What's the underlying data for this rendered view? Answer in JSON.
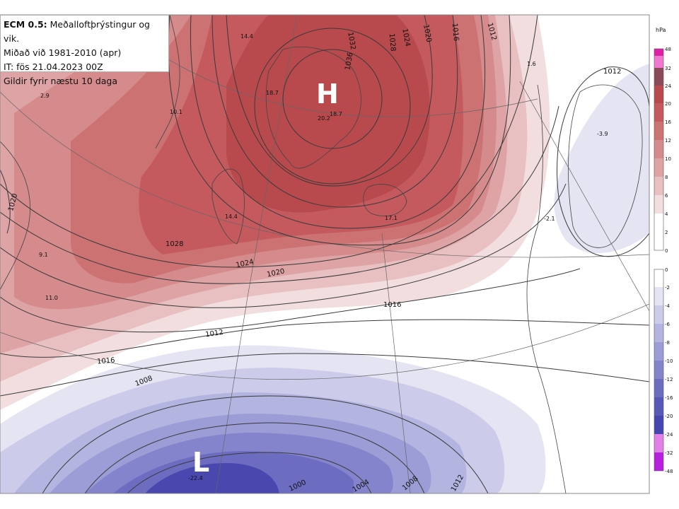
{
  "title": {
    "model": "ECM 0.5:",
    "description": "Meðalloftþrýstingur og vik.",
    "climatology": "Miðað við 1981-2010 (apr)",
    "init_time": "IT: fös 21.04.2023 00Z",
    "validity": "Gildir fyrir næstu 10 daga"
  },
  "pressure_centers": [
    {
      "type": "high",
      "label": "H"
    },
    {
      "type": "low",
      "label": "L"
    }
  ],
  "isobar_labels": [
    "1036",
    "1032",
    "1028",
    "1024",
    "1020",
    "1016",
    "1012",
    "1028",
    "1024",
    "1020",
    "1016",
    "1012",
    "1016",
    "1008",
    "1000",
    "1004",
    "1008",
    "1012",
    "1012",
    "1020"
  ],
  "anomaly_values": [
    "14.4",
    "18.7",
    "20.2",
    "18.7",
    "10.1",
    "2.9",
    "14.4",
    "17.1",
    "9.1",
    "11.0",
    "-3.9",
    "1.6",
    "-2.1",
    "-22.4"
  ],
  "legend": {
    "unit": "hPa",
    "positive_ticks": [
      "48",
      "32",
      "24",
      "20",
      "16",
      "12",
      "10",
      "8",
      "6",
      "4",
      "2",
      "0"
    ],
    "positive_colors": [
      "#e020a8",
      "#f078d0",
      "#8a4a5a",
      "#b84a4e",
      "#c45a5e",
      "#cc7272",
      "#d58a8c",
      "#dea3a4",
      "#e8c0c1",
      "#f2dede",
      "#ffffff"
    ],
    "negative_ticks": [
      "0",
      "-2",
      "-4",
      "-6",
      "-8",
      "-10",
      "-12",
      "-16",
      "-20",
      "-24",
      "-32",
      "-48"
    ],
    "negative_colors": [
      "#ffffff",
      "#e4e4f2",
      "#ccccea",
      "#b4b4e0",
      "#9c9cd6",
      "#8484cc",
      "#6c6cc0",
      "#5858b8",
      "#4646ae",
      "#e080e8",
      "#b820e0"
    ]
  },
  "colors": {
    "strong_positive": "#b84a4e",
    "moderate_positive": "#d38a8c",
    "weak_positive": "#f2dede",
    "strong_negative": "#4848ae",
    "moderate_negative": "#8484cc",
    "weak_negative": "#e4e4f2",
    "isobar": "#3a3a3a"
  }
}
